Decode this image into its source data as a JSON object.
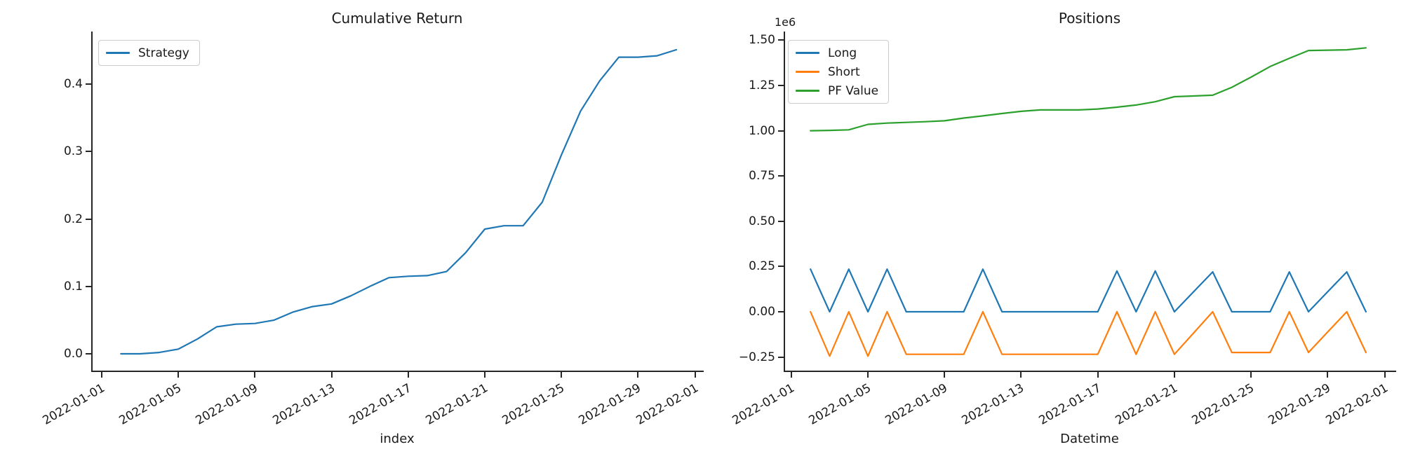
{
  "figure": {
    "background": "#ffffff",
    "text_color": "#1a1a1a",
    "axis_color": "#262626"
  },
  "chart_data": [
    {
      "id": "cumulative",
      "type": "line",
      "title": "Cumulative Return",
      "xlabel": "index",
      "ylabel": "",
      "legend_position": "upper left",
      "grid": false,
      "x_tick_labels": [
        "2022-01-01",
        "2022-01-05",
        "2022-01-09",
        "2022-01-13",
        "2022-01-17",
        "2022-01-21",
        "2022-01-25",
        "2022-01-29",
        "2022-02-01"
      ],
      "x_tick_days": [
        0,
        4,
        8,
        12,
        16,
        20,
        24,
        28,
        31
      ],
      "y_tick_labels": [
        "0.0",
        "0.1",
        "0.2",
        "0.3",
        "0.4"
      ],
      "y_tick_values": [
        0.0,
        0.1,
        0.2,
        0.3,
        0.4
      ],
      "ylim": [
        -0.027,
        0.478
      ],
      "xlim_days": [
        -0.55,
        31.43
      ],
      "series": [
        {
          "name": "Strategy",
          "color": "#1f77b4",
          "dates_start": "2022-01-02",
          "days": [
            1,
            2,
            3,
            4,
            5,
            6,
            7,
            8,
            9,
            10,
            11,
            12,
            13,
            14,
            15,
            16,
            17,
            18,
            19,
            20,
            21,
            22,
            23,
            24,
            25,
            26,
            27,
            28,
            29,
            30
          ],
          "values": [
            0.0,
            0.0,
            0.002,
            0.007,
            0.022,
            0.04,
            0.044,
            0.045,
            0.05,
            0.062,
            0.07,
            0.074,
            0.086,
            0.1,
            0.113,
            0.115,
            0.116,
            0.122,
            0.15,
            0.185,
            0.19,
            0.19,
            0.225,
            0.295,
            0.36,
            0.405,
            0.44,
            0.44,
            0.442,
            0.451
          ]
        }
      ]
    },
    {
      "id": "positions",
      "type": "line",
      "title": "Positions",
      "xlabel": "Datetime",
      "ylabel": "",
      "offset_label": "1e6",
      "unit_scale": 1000000,
      "legend_position": "upper left",
      "grid": false,
      "x_tick_labels": [
        "2022-01-01",
        "2022-01-05",
        "2022-01-09",
        "2022-01-13",
        "2022-01-17",
        "2022-01-21",
        "2022-01-25",
        "2022-01-29",
        "2022-02-01"
      ],
      "x_tick_days": [
        0,
        4,
        8,
        12,
        16,
        20,
        24,
        28,
        31
      ],
      "y_tick_labels": [
        "−0.25",
        "0.00",
        "0.25",
        "0.50",
        "0.75",
        "1.00",
        "1.25",
        "1.50"
      ],
      "y_tick_values": [
        -0.25,
        0.0,
        0.25,
        0.5,
        0.75,
        1.0,
        1.25,
        1.5
      ],
      "ylim": [
        -0.333,
        1.548
      ],
      "xlim_days": [
        -0.4,
        31.58
      ],
      "series": [
        {
          "name": "Long",
          "color": "#1f77b4",
          "dates_start": "2022-01-02",
          "days": [
            1,
            2,
            3,
            4,
            5,
            6,
            7,
            8,
            9,
            10,
            11,
            12,
            13,
            14,
            15,
            16,
            17,
            18,
            19,
            20,
            21,
            22,
            23,
            24,
            25,
            26,
            27,
            28,
            29,
            30
          ],
          "values": [
            0.235,
            0,
            0.235,
            0,
            0.235,
            0,
            0,
            0,
            0,
            0.235,
            0,
            0,
            0,
            0,
            0,
            0,
            0.225,
            0,
            0.225,
            0,
            0.11,
            0.22,
            0,
            0,
            0,
            0.22,
            0,
            0.11,
            0.22,
            0
          ]
        },
        {
          "name": "Short",
          "color": "#ff7f0e",
          "dates_start": "2022-01-02",
          "days": [
            1,
            2,
            3,
            4,
            5,
            6,
            7,
            8,
            9,
            10,
            11,
            12,
            13,
            14,
            15,
            16,
            17,
            18,
            19,
            20,
            21,
            22,
            23,
            24,
            25,
            26,
            27,
            28,
            29,
            30
          ],
          "values": [
            0,
            -0.245,
            0,
            -0.245,
            0,
            -0.235,
            -0.235,
            -0.235,
            -0.235,
            0,
            -0.235,
            -0.235,
            -0.235,
            -0.235,
            -0.235,
            -0.235,
            0,
            -0.235,
            0,
            -0.235,
            -0.118,
            0,
            -0.225,
            -0.225,
            -0.225,
            0,
            -0.225,
            -0.112,
            0,
            -0.225
          ]
        },
        {
          "name": "PF Value",
          "color": "#2ca02c",
          "dates_start": "2022-01-02",
          "days": [
            1,
            2,
            3,
            4,
            5,
            6,
            7,
            8,
            9,
            10,
            11,
            12,
            13,
            14,
            15,
            16,
            17,
            18,
            19,
            20,
            21,
            22,
            23,
            24,
            25,
            26,
            27,
            28,
            29,
            30
          ],
          "values": [
            1.0,
            1.002,
            1.005,
            1.035,
            1.042,
            1.046,
            1.05,
            1.055,
            1.07,
            1.082,
            1.095,
            1.107,
            1.115,
            1.115,
            1.115,
            1.12,
            1.13,
            1.142,
            1.16,
            1.188,
            1.192,
            1.196,
            1.24,
            1.296,
            1.355,
            1.4,
            1.443,
            1.445,
            1.447,
            1.458
          ]
        }
      ]
    }
  ]
}
